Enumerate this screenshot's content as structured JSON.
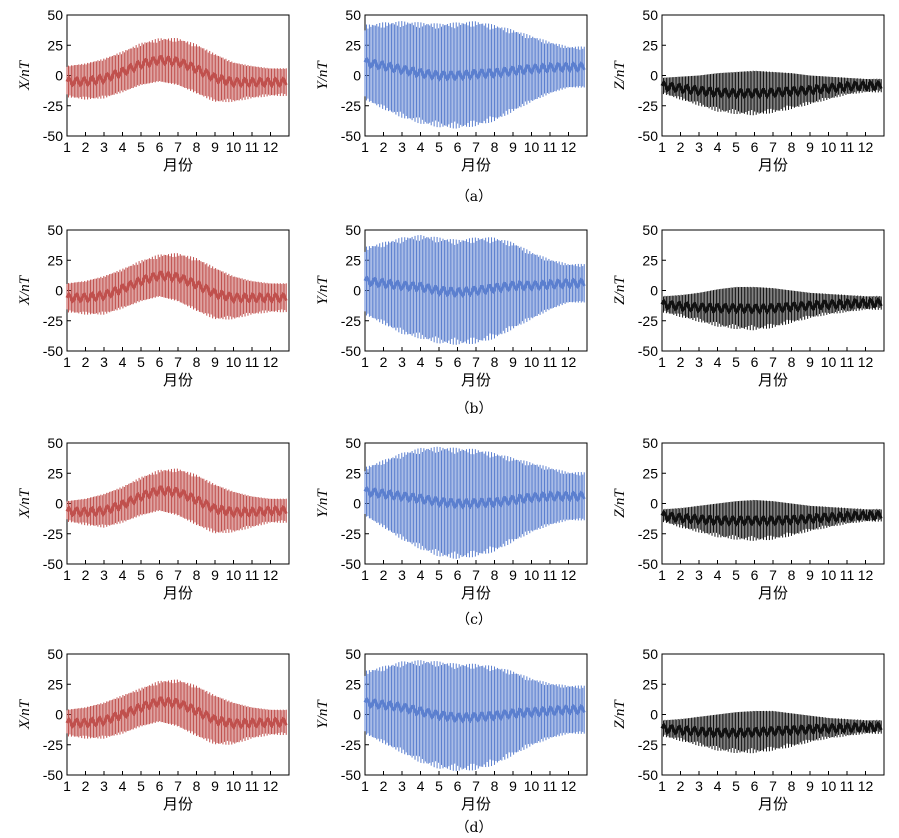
{
  "figure": {
    "month_axis": [
      "1",
      "2",
      "3",
      "4",
      "5",
      "6",
      "7",
      "8",
      "9",
      "10",
      "11",
      "12"
    ],
    "xlabel": "月份",
    "colors": {
      "X": "#c0504d",
      "Y": "#5b7fcf",
      "Z": "#111111"
    },
    "rows": [
      {
        "label": "（a）"
      },
      {
        "label": "（b）"
      },
      {
        "label": "（c）"
      },
      {
        "label": "（d）"
      }
    ]
  },
  "chart_data": [
    {
      "type": "area",
      "panel": "a",
      "component": "X",
      "ylabel": "X/nT",
      "ylim": [
        -50,
        50
      ],
      "yticks": [
        50,
        25,
        0,
        -25,
        -50
      ],
      "xlabel": "月份",
      "x": [
        1,
        2,
        3,
        4,
        5,
        6,
        7,
        8,
        9,
        10,
        11,
        12
      ],
      "series": [
        {
          "values_max": [
            8,
            10,
            14,
            20,
            27,
            31,
            31,
            26,
            18,
            11,
            8,
            6
          ],
          "values_min": [
            -18,
            -20,
            -19,
            -14,
            -8,
            -5,
            -8,
            -15,
            -22,
            -22,
            -19,
            -17
          ]
        }
      ]
    },
    {
      "type": "area",
      "panel": "a",
      "component": "Y",
      "ylabel": "Y/nT",
      "ylim": [
        -50,
        50
      ],
      "yticks": [
        50,
        25,
        0,
        -25,
        -50
      ],
      "xlabel": "月份",
      "x": [
        1,
        2,
        3,
        4,
        5,
        6,
        7,
        8,
        9,
        10,
        11,
        12
      ],
      "series": [
        {
          "values_max": [
            42,
            44,
            45,
            44,
            43,
            44,
            45,
            42,
            38,
            33,
            28,
            24
          ],
          "values_min": [
            -20,
            -28,
            -35,
            -40,
            -43,
            -44,
            -42,
            -38,
            -30,
            -22,
            -15,
            -10
          ]
        }
      ]
    },
    {
      "type": "area",
      "panel": "a",
      "component": "Z",
      "ylabel": "Z/nT",
      "ylim": [
        -50,
        50
      ],
      "yticks": [
        50,
        25,
        0,
        -25,
        -50
      ],
      "xlabel": "月份",
      "x": [
        1,
        2,
        3,
        4,
        5,
        6,
        7,
        8,
        9,
        10,
        11,
        12
      ],
      "series": [
        {
          "values_max": [
            -2,
            -1,
            0,
            2,
            3,
            4,
            3,
            2,
            0,
            -1,
            -2,
            -3
          ],
          "values_min": [
            -15,
            -20,
            -25,
            -30,
            -32,
            -33,
            -31,
            -28,
            -24,
            -20,
            -16,
            -14
          ]
        }
      ]
    },
    {
      "type": "area",
      "panel": "b",
      "component": "X",
      "ylabel": "X/nT",
      "ylim": [
        -50,
        50
      ],
      "yticks": [
        50,
        25,
        0,
        -25,
        -50
      ],
      "xlabel": "月份",
      "x": [
        1,
        2,
        3,
        4,
        5,
        6,
        7,
        8,
        9,
        10,
        11,
        12
      ],
      "series": [
        {
          "values_max": [
            6,
            8,
            12,
            18,
            25,
            30,
            31,
            27,
            19,
            12,
            8,
            6
          ],
          "values_min": [
            -18,
            -20,
            -20,
            -15,
            -9,
            -5,
            -9,
            -17,
            -24,
            -24,
            -20,
            -18
          ]
        }
      ]
    },
    {
      "type": "area",
      "panel": "b",
      "component": "Y",
      "ylabel": "Y/nT",
      "ylim": [
        -50,
        50
      ],
      "yticks": [
        50,
        25,
        0,
        -25,
        -50
      ],
      "xlabel": "月份",
      "x": [
        1,
        2,
        3,
        4,
        5,
        6,
        7,
        8,
        9,
        10,
        11,
        12
      ],
      "series": [
        {
          "values_max": [
            36,
            40,
            44,
            46,
            44,
            42,
            44,
            44,
            40,
            32,
            26,
            22
          ],
          "values_min": [
            -20,
            -28,
            -36,
            -40,
            -44,
            -45,
            -44,
            -40,
            -32,
            -24,
            -16,
            -10
          ]
        }
      ]
    },
    {
      "type": "area",
      "panel": "b",
      "component": "Z",
      "ylabel": "Z/nT",
      "ylim": [
        -50,
        50
      ],
      "yticks": [
        50,
        25,
        0,
        -25,
        -50
      ],
      "xlabel": "月份",
      "x": [
        1,
        2,
        3,
        4,
        5,
        6,
        7,
        8,
        9,
        10,
        11,
        12
      ],
      "series": [
        {
          "values_max": [
            -5,
            -4,
            -2,
            1,
            3,
            3,
            2,
            0,
            -2,
            -3,
            -4,
            -5
          ],
          "values_min": [
            -18,
            -22,
            -26,
            -30,
            -32,
            -33,
            -31,
            -27,
            -23,
            -20,
            -18,
            -16
          ]
        }
      ]
    },
    {
      "type": "area",
      "panel": "c",
      "component": "X",
      "ylabel": "X/nT",
      "ylim": [
        -50,
        50
      ],
      "yticks": [
        50,
        25,
        0,
        -25,
        -50
      ],
      "xlabel": "月份",
      "x": [
        1,
        2,
        3,
        4,
        5,
        6,
        7,
        8,
        9,
        10,
        11,
        12
      ],
      "series": [
        {
          "values_max": [
            2,
            4,
            8,
            14,
            22,
            28,
            29,
            24,
            16,
            10,
            6,
            4
          ],
          "values_min": [
            -15,
            -18,
            -20,
            -16,
            -10,
            -6,
            -10,
            -18,
            -25,
            -24,
            -20,
            -16
          ]
        }
      ]
    },
    {
      "type": "area",
      "panel": "c",
      "component": "Y",
      "ylabel": "Y/nT",
      "ylim": [
        -50,
        50
      ],
      "yticks": [
        50,
        25,
        0,
        -25,
        -50
      ],
      "xlabel": "月份",
      "x": [
        1,
        2,
        3,
        4,
        5,
        6,
        7,
        8,
        9,
        10,
        11,
        12
      ],
      "series": [
        {
          "values_max": [
            30,
            36,
            42,
            46,
            47,
            46,
            45,
            42,
            38,
            34,
            30,
            26
          ],
          "values_min": [
            -10,
            -20,
            -30,
            -38,
            -44,
            -46,
            -44,
            -40,
            -32,
            -24,
            -18,
            -14
          ]
        }
      ]
    },
    {
      "type": "area",
      "panel": "c",
      "component": "Z",
      "ylabel": "Z/nT",
      "ylim": [
        -50,
        50
      ],
      "yticks": [
        50,
        25,
        0,
        -25,
        -50
      ],
      "xlabel": "月份",
      "x": [
        1,
        2,
        3,
        4,
        5,
        6,
        7,
        8,
        9,
        10,
        11,
        12
      ],
      "series": [
        {
          "values_max": [
            -5,
            -4,
            -2,
            0,
            2,
            3,
            2,
            0,
            -2,
            -3,
            -4,
            -5
          ],
          "values_min": [
            -15,
            -20,
            -24,
            -28,
            -30,
            -31,
            -30,
            -27,
            -23,
            -20,
            -17,
            -15
          ]
        }
      ]
    },
    {
      "type": "area",
      "panel": "d",
      "component": "X",
      "ylabel": "X/nT",
      "ylim": [
        -50,
        50
      ],
      "yticks": [
        50,
        25,
        0,
        -25,
        -50
      ],
      "xlabel": "月份",
      "x": [
        1,
        2,
        3,
        4,
        5,
        6,
        7,
        8,
        9,
        10,
        11,
        12
      ],
      "series": [
        {
          "values_max": [
            4,
            6,
            10,
            16,
            22,
            28,
            29,
            24,
            16,
            10,
            6,
            4
          ],
          "values_min": [
            -18,
            -20,
            -20,
            -16,
            -10,
            -6,
            -10,
            -18,
            -25,
            -25,
            -20,
            -17
          ]
        }
      ]
    },
    {
      "type": "area",
      "panel": "d",
      "component": "Y",
      "ylabel": "Y/nT",
      "ylim": [
        -50,
        50
      ],
      "yticks": [
        50,
        25,
        0,
        -25,
        -50
      ],
      "xlabel": "月份",
      "x": [
        1,
        2,
        3,
        4,
        5,
        6,
        7,
        8,
        9,
        10,
        11,
        12
      ],
      "series": [
        {
          "values_max": [
            36,
            40,
            44,
            45,
            44,
            42,
            42,
            40,
            36,
            30,
            26,
            24
          ],
          "values_min": [
            -16,
            -24,
            -32,
            -40,
            -45,
            -47,
            -46,
            -42,
            -34,
            -26,
            -20,
            -16
          ]
        }
      ]
    },
    {
      "type": "area",
      "panel": "d",
      "component": "Z",
      "ylabel": "Z/nT",
      "ylim": [
        -50,
        50
      ],
      "yticks": [
        50,
        25,
        0,
        -25,
        -50
      ],
      "xlabel": "月份",
      "x": [
        1,
        2,
        3,
        4,
        5,
        6,
        7,
        8,
        9,
        10,
        11,
        12
      ],
      "series": [
        {
          "values_max": [
            -5,
            -4,
            -2,
            0,
            2,
            3,
            3,
            1,
            -1,
            -3,
            -4,
            -5
          ],
          "values_min": [
            -18,
            -22,
            -26,
            -30,
            -32,
            -32,
            -30,
            -27,
            -23,
            -20,
            -18,
            -16
          ]
        }
      ]
    }
  ]
}
